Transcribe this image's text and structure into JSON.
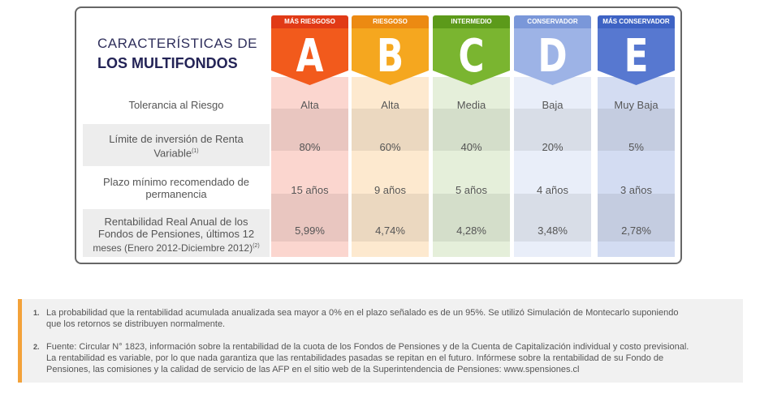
{
  "header": {
    "title_line1": "CARACTERÍSTICAS DE",
    "title_line2": "LOS MULTIFONDOS"
  },
  "funds": [
    {
      "band": "MÁS RIESGOSO",
      "letter": "A",
      "band_color": "#e13a16",
      "flag_color": "#f25a1c",
      "body_color": "#fbd6cf",
      "tolerance": "Alta",
      "limit": "80%",
      "term": "15 años",
      "return": "5,99%"
    },
    {
      "band": "RIESGOSO",
      "letter": "B",
      "band_color": "#ec8a12",
      "flag_color": "#f5a71f",
      "body_color": "#fde9cf",
      "tolerance": "Alta",
      "limit": "60%",
      "term": "9 años",
      "return": "4,74%"
    },
    {
      "band": "INTERMEDIO",
      "letter": "C",
      "band_color": "#5c9a1a",
      "flag_color": "#7ab530",
      "body_color": "#e5efda",
      "tolerance": "Media",
      "limit": "40%",
      "term": "5 años",
      "return": "4,28%"
    },
    {
      "band": "CONSERVADOR",
      "letter": "D",
      "band_color": "#7a97d9",
      "flag_color": "#9db3e6",
      "body_color": "#e9eef9",
      "tolerance": "Baja",
      "limit": "20%",
      "term": "4 años",
      "return": "3,48%"
    },
    {
      "band": "MÁS CONSERVADOR",
      "letter": "E",
      "band_color": "#3e63c4",
      "flag_color": "#5778d0",
      "body_color": "#d3dcf2",
      "tolerance": "Muy Baja",
      "limit": "5%",
      "term": "3 años",
      "return": "2,78%"
    }
  ],
  "rows": {
    "tolerance": "Tolerancia al Riesgo",
    "limit_line1": "Límite de inversión de Renta",
    "limit_line2": "Variable",
    "limit_sup": "(1)",
    "term_line1": "Plazo mínimo recomendado de",
    "term_line2": "permanencia",
    "return_line1": "Rentabilidad Real Anual de los",
    "return_line2": "Fondos de Pensiones, últimos 12",
    "return_line3": "meses (Enero 2012-Diciembre 2012)",
    "return_sup": "(2)"
  },
  "notes": [
    {
      "num": "1.",
      "line1": "La probabilidad que la rentabilidad acumulada anualizada sea mayor a 0% en el plazo señalado es de un 95%. Se utilizó Simulación de Montecarlo suponiendo",
      "line2": "que los retornos se distribuyen normalmente."
    },
    {
      "num": "2.",
      "line1": "Fuente: Circular N° 1823, información sobre la rentabilidad de la cuota de los Fondos de Pensiones y de la Cuenta de Capitalización individual y costo previsional.",
      "line2": "La rentabilidad es variable, por lo que nada garantiza que las rentabilidades pasadas se repitan en el futuro. Infórmese sobre la rentabilidad de su Fondo de",
      "line3": "Pensiones, las comisiones y la calidad de servicio de las AFP en el sitio web de la Superintendencia de Pensiones: www.spensiones.cl"
    }
  ]
}
